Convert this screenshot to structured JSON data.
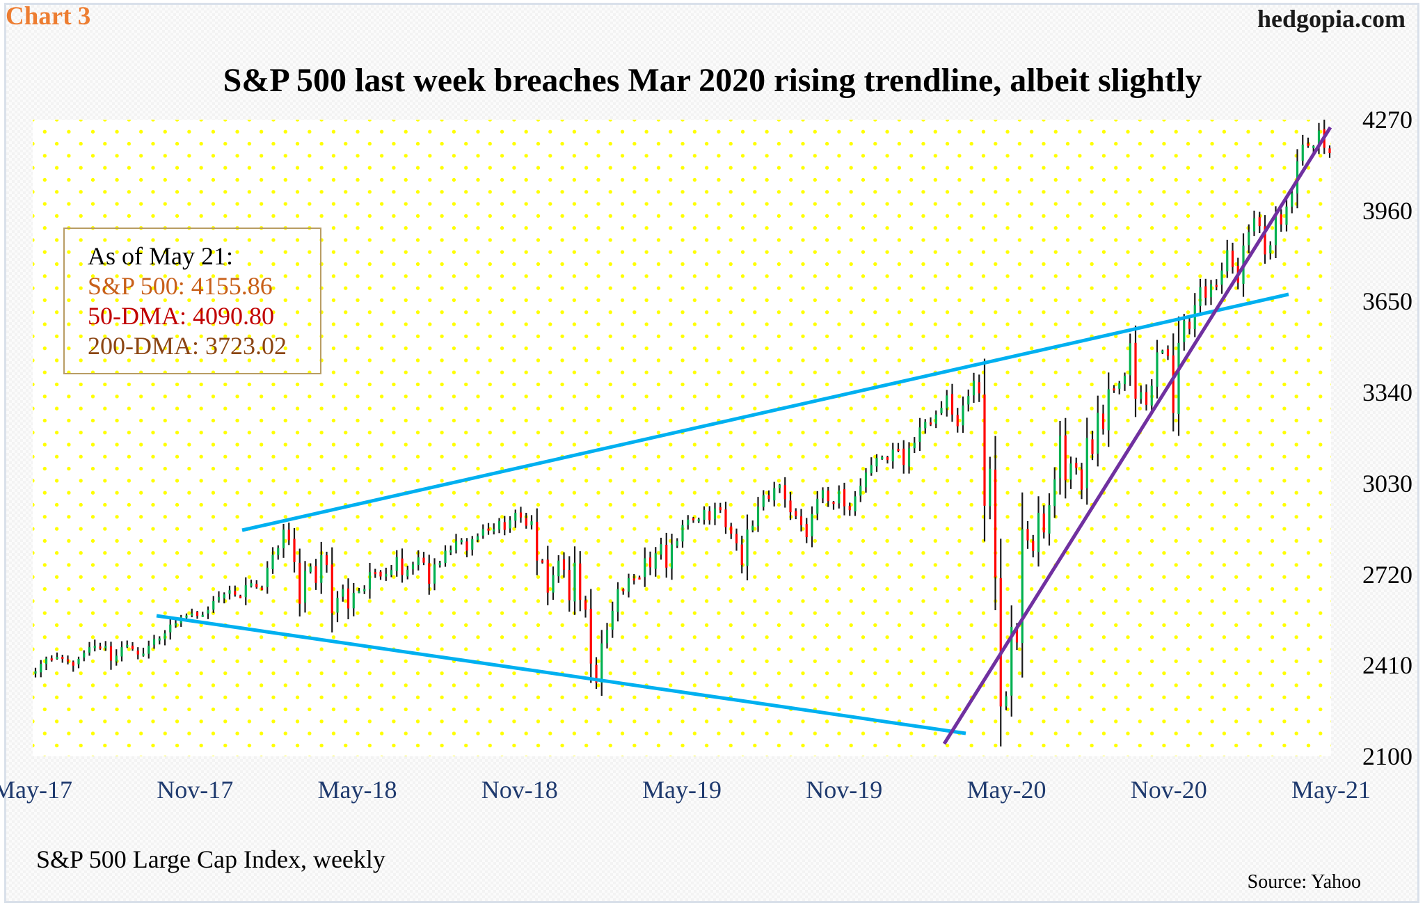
{
  "header": {
    "chart_label": "Chart 3",
    "brand": "hedgopia.com",
    "title": "S&P 500 last week breaches Mar 2020 rising trendline, albeit slightly"
  },
  "legend": {
    "as_of": "As of May 21:",
    "spx": "S&P 500: 4155.86",
    "dma50": "50-DMA: 4090.80",
    "dma200": "200-DMA: 3723.02",
    "colors": {
      "as_of": "#000000",
      "spx": "#c8601a",
      "dma50": "#c00000",
      "dma200": "#8b4513",
      "border": "#b89c63"
    }
  },
  "footer": {
    "series_label": "S&P 500 Large Cap Index, weekly",
    "source": "Source: Yahoo"
  },
  "colors": {
    "up": "#00b050",
    "down": "#ff0000",
    "wick": "#1a1a1a",
    "trendline_blue": "#00b0f0",
    "trendline_purple": "#7030a0",
    "grid_dots": "#ffff00",
    "title_accent": "#ed7d31",
    "axis_date_labels": "#1f3a6e"
  },
  "chart_data": {
    "type": "bar",
    "subtype": "ohlc-weekly",
    "title": "S&P 500 last week breaches Mar 2020 rising trendline, albeit slightly",
    "xlabel": "",
    "ylabel": "",
    "ylim": [
      2100,
      4270
    ],
    "y_ticks": [
      4270,
      3960,
      3650,
      3340,
      3030,
      2720,
      2410,
      2100
    ],
    "x_ticks": [
      "May-17",
      "Nov-17",
      "May-18",
      "Nov-18",
      "May-19",
      "Nov-19",
      "May-20",
      "Nov-20",
      "May-21"
    ],
    "grid": "dotted yellow",
    "legend_position": "upper-left box",
    "annotations": [
      "As of May 21:",
      "S&P 500: 4155.86",
      "50-DMA: 4090.80",
      "200-DMA: 3723.02"
    ],
    "trendlines": [
      {
        "name": "upper-rising-resistance",
        "color": "#00b0f0",
        "from": [
          "Jan-18",
          2873
        ],
        "to": [
          "Apr-21",
          3665
        ]
      },
      {
        "name": "lower-falling-support",
        "color": "#00b0f0",
        "from": [
          "Sep-17",
          2555
        ],
        "to": [
          "Apr-20",
          2165
        ]
      },
      {
        "name": "Mar-2020-rising-trendline",
        "color": "#7030a0",
        "from": [
          "Mar-20",
          2130
        ],
        "to": [
          "May-21",
          4245
        ]
      }
    ],
    "weekly_close": [
      2390,
      2415,
      2433,
      2431,
      2439,
      2434,
      2425,
      2409,
      2432,
      2453,
      2472,
      2477,
      2472,
      2476,
      2426,
      2443,
      2472,
      2480,
      2465,
      2447,
      2450,
      2477,
      2500,
      2502,
      2519,
      2549,
      2553,
      2575,
      2580,
      2587,
      2579,
      2582,
      2599,
      2629,
      2643,
      2652,
      2666,
      2651,
      2642,
      2683,
      2690,
      2676,
      2674,
      2743,
      2787,
      2810,
      2873,
      2837,
      2762,
      2620,
      2732,
      2747,
      2691,
      2786,
      2752,
      2588,
      2640,
      2670,
      2604,
      2657,
      2663,
      2670,
      2728,
      2727,
      2713,
      2722,
      2735,
      2779,
      2718,
      2736,
      2754,
      2778,
      2760,
      2688,
      2754,
      2759,
      2801,
      2802,
      2833,
      2837,
      2801,
      2840,
      2850,
      2875,
      2875,
      2874,
      2902,
      2872,
      2905,
      2930,
      2914,
      2886,
      2901,
      2767,
      2767,
      2658,
      2718,
      2767,
      2736,
      2632,
      2760,
      2633,
      2600,
      2416,
      2351,
      2485,
      2531,
      2596,
      2670,
      2665,
      2707,
      2706,
      2708,
      2775,
      2744,
      2792,
      2823,
      2743,
      2822,
      2834,
      2888,
      2907,
      2905,
      2908,
      2940,
      2905,
      2945,
      2939,
      2881,
      2859,
      2826,
      2752,
      2873,
      2886,
      2951,
      2990,
      2977,
      3014,
      3025,
      2976,
      2932,
      2919,
      2888,
      2847,
      2926,
      2978,
      3007,
      2970,
      2961,
      3006,
      2952,
      2939,
      2986,
      3022,
      3067,
      3093,
      3117,
      3120,
      3110,
      3146,
      3145,
      3093,
      3150,
      3169,
      3221,
      3240,
      3235,
      3265,
      3288,
      3330,
      3265,
      3225,
      3296,
      3328,
      3380,
      3337,
      2954,
      3080,
      2711,
      2270,
      2305,
      2541,
      2488,
      2874,
      2836,
      2800,
      2930,
      2863,
      2956,
      3044,
      3193,
      3041,
      3098,
      3083,
      3009,
      3185,
      3130,
      3271,
      3215,
      3351,
      3351,
      3372,
      3397,
      3508,
      3319,
      3341,
      3298,
      3363,
      3477,
      3483,
      3465,
      3270,
      3509,
      3585,
      3557,
      3638,
      3699,
      3663,
      3709,
      3703,
      3756,
      3825,
      3768,
      3714,
      3841,
      3887,
      3934,
      3907,
      3811,
      3842,
      3943,
      3913,
      3974,
      4019,
      4128,
      4185,
      4180,
      4180,
      4233,
      4174,
      4156
    ],
    "last_values": {
      "close": 4155.86,
      "dma50": 4090.8,
      "dma200": 3723.02
    }
  }
}
